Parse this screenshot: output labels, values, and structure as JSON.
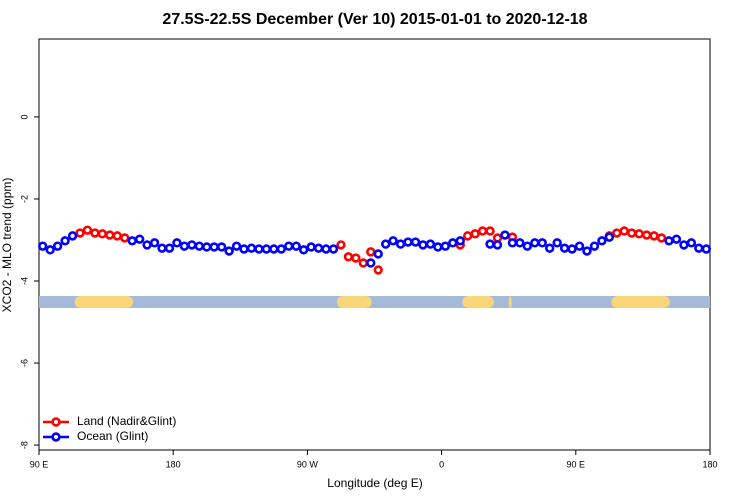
{
  "chart_data": {
    "type": "scatter",
    "title": "27.5S-22.5S December (Ver 10)   2015-01-01 to 2020-12-18",
    "x_label": "Longitude (deg E)",
    "y_label": "XCO2 - MLO trend (ppm)",
    "xlim": [
      90,
      540
    ],
    "ylim": [
      -8.12,
      1.9
    ],
    "xticks": [
      {
        "value": 90,
        "label": "90 E"
      },
      180,
      {
        "value": 270,
        "label": "90 W"
      },
      {
        "value": 360,
        "label": "0"
      },
      {
        "value": 450,
        "label": "90 E"
      },
      {
        "value": 540,
        "label": "180"
      }
    ],
    "yticks": [
      0,
      -2,
      -4,
      -6,
      -8
    ],
    "legend": "bottom-left",
    "x": [
      92.5,
      97.5,
      102.5,
      107.5,
      112.5,
      117.5,
      122.5,
      127.5,
      132.5,
      137.5,
      142.5,
      147.5,
      152.5,
      157.5,
      162.5,
      167.5,
      172.5,
      177.5,
      182.5,
      187.5,
      192.5,
      197.5,
      202.5,
      207.5,
      212.5,
      217.5,
      222.5,
      227.5,
      232.5,
      237.5,
      242.5,
      247.5,
      252.5,
      257.5,
      262.5,
      267.5,
      272.5,
      277.5,
      282.5,
      287.5,
      292.5,
      297.5,
      302.5,
      307.5,
      312.5,
      317.5,
      322.5,
      327.5,
      332.5,
      337.5,
      342.5,
      347.5,
      352.5,
      357.5,
      362.5,
      367.5,
      372.5,
      377.5,
      382.5,
      387.5,
      392.5,
      397.5,
      402.5,
      407.5,
      412.5,
      417.5,
      422.5,
      427.5,
      432.5,
      437.5,
      442.5,
      447.5,
      452.5,
      457.5,
      462.5,
      467.5,
      472.5,
      477.5,
      482.5,
      487.5,
      492.5,
      497.5,
      502.5,
      507.5,
      512.5,
      517.5,
      522.5,
      527.5,
      532.5,
      537.5
    ],
    "series": [
      {
        "name": "Land (Nadir&Glint)",
        "color": "#ff0000",
        "values": [
          null,
          null,
          null,
          null,
          null,
          -2.83,
          -2.76,
          -2.83,
          -2.85,
          -2.88,
          -2.9,
          -2.95,
          null,
          null,
          null,
          null,
          null,
          null,
          null,
          null,
          null,
          null,
          null,
          null,
          null,
          null,
          null,
          null,
          null,
          null,
          null,
          null,
          null,
          null,
          null,
          null,
          null,
          null,
          null,
          null,
          -3.12,
          -3.41,
          -3.44,
          -3.56,
          -3.29,
          -3.73,
          null,
          null,
          null,
          null,
          null,
          null,
          null,
          null,
          null,
          null,
          -3.12,
          -2.9,
          -2.85,
          -2.78,
          -2.78,
          -2.95,
          null,
          -2.93,
          null,
          null,
          null,
          null,
          null,
          null,
          null,
          null,
          null,
          null,
          null,
          null,
          -2.9,
          -2.83,
          -2.78,
          -2.83,
          -2.85,
          -2.88,
          -2.9,
          -2.95,
          null,
          null,
          null,
          null,
          null,
          null
        ]
      },
      {
        "name": "Ocean (Glint)",
        "color": "#0000ff",
        "values": [
          -3.15,
          -3.24,
          -3.15,
          -3.02,
          -2.9,
          null,
          null,
          null,
          null,
          null,
          null,
          null,
          -3.02,
          -2.98,
          -3.12,
          -3.07,
          -3.2,
          -3.2,
          -3.07,
          -3.15,
          -3.12,
          -3.15,
          -3.17,
          -3.17,
          -3.17,
          -3.27,
          -3.15,
          -3.22,
          -3.2,
          -3.22,
          -3.22,
          -3.22,
          -3.22,
          -3.15,
          -3.15,
          -3.24,
          -3.17,
          -3.2,
          -3.22,
          -3.22,
          null,
          null,
          null,
          null,
          -3.56,
          -3.34,
          -3.1,
          -3.02,
          -3.1,
          -3.05,
          -3.05,
          -3.12,
          -3.1,
          -3.17,
          -3.15,
          -3.07,
          -3.02,
          null,
          null,
          null,
          -3.1,
          -3.12,
          -2.88,
          -3.07,
          -3.07,
          -3.15,
          -3.07,
          -3.07,
          -3.2,
          -3.07,
          -3.2,
          -3.22,
          -3.15,
          -3.27,
          -3.15,
          -3.02,
          -2.93,
          null,
          null,
          null,
          null,
          null,
          null,
          null,
          -3.02,
          -2.98,
          -3.12,
          -3.07,
          -3.2,
          -3.22
        ]
      }
    ],
    "ocean_color": "#a5b9d9",
    "land_color": "#fad679",
    "land_segments": [
      [
        114,
        153
      ],
      [
        290,
        313
      ],
      [
        374,
        395
      ],
      [
        405,
        407
      ],
      [
        474,
        513
      ]
    ]
  }
}
